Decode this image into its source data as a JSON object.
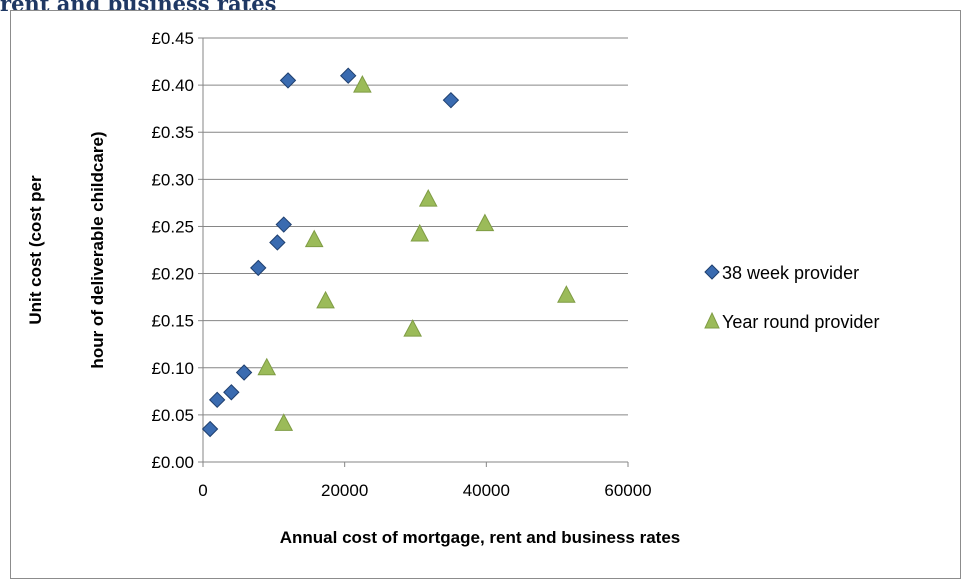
{
  "heading": "rent and business rates",
  "chart_data": {
    "type": "scatter",
    "xlabel": "Annual cost of mortgage, rent and business rates",
    "ylabel_lines": [
      "Unit cost (cost per",
      "hour of deliverable childcare)"
    ],
    "xlim": [
      0,
      60000
    ],
    "ylim": [
      0,
      0.45
    ],
    "x_ticks": [
      0,
      20000,
      40000,
      60000
    ],
    "x_tick_labels": [
      "0",
      "20000",
      "40000",
      "60000"
    ],
    "y_ticks": [
      0,
      0.05,
      0.1,
      0.15,
      0.2,
      0.25,
      0.3,
      0.35,
      0.4,
      0.45
    ],
    "y_tick_labels": [
      "£0.00",
      "£0.05",
      "£0.10",
      "£0.15",
      "£0.20",
      "£0.25",
      "£0.30",
      "£0.35",
      "£0.40",
      "£0.45"
    ],
    "grid": "horizontal major gridlines",
    "legend_position": "right",
    "series": [
      {
        "name": "38 week provider",
        "marker": "diamond",
        "color": "#3a6bb0",
        "stroke": "#1f3f6e",
        "points": [
          [
            1000,
            0.035
          ],
          [
            2000,
            0.066
          ],
          [
            4000,
            0.074
          ],
          [
            5800,
            0.095
          ],
          [
            7800,
            0.206
          ],
          [
            10500,
            0.233
          ],
          [
            11400,
            0.252
          ],
          [
            12000,
            0.405
          ],
          [
            20500,
            0.41
          ],
          [
            35000,
            0.384
          ]
        ]
      },
      {
        "name": "Year round provider",
        "marker": "triangle",
        "color": "#9bbb59",
        "stroke": "#7f9c44",
        "points": [
          [
            11400,
            0.041
          ],
          [
            9000,
            0.1
          ],
          [
            17300,
            0.171
          ],
          [
            15700,
            0.236
          ],
          [
            22500,
            0.4
          ],
          [
            29600,
            0.141
          ],
          [
            30600,
            0.242
          ],
          [
            31800,
            0.279
          ],
          [
            39800,
            0.253
          ],
          [
            51300,
            0.177
          ]
        ]
      }
    ]
  }
}
